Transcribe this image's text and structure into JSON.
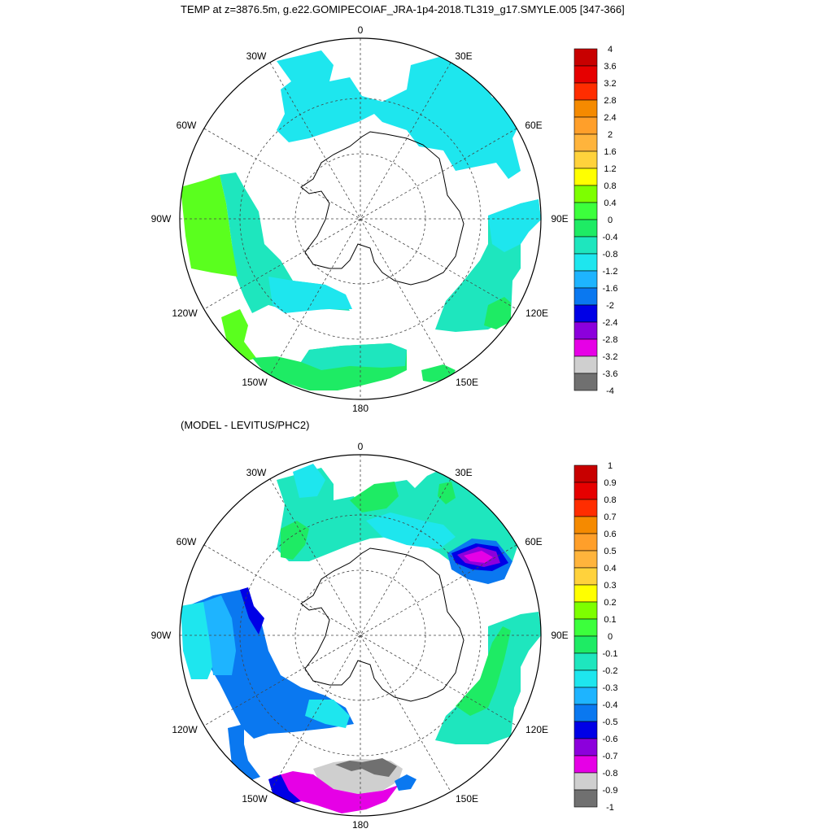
{
  "titles": {
    "main": "TEMP at z=3876.5m, g.e22.GOMIPECOIAF_JRA-1p4-2018.TL319_g17.SMYLE.005 [347-366]",
    "difference": "(MODEL - LEVITUS/PHC2)"
  },
  "panels": [
    {
      "name": "temperature",
      "labels": {
        "lon_0": "0",
        "lon_30e": "30E",
        "lon_60e": "60E",
        "lon_90e": "90E",
        "lon_120e": "120E",
        "lon_150e": "150E",
        "lon_180": "180",
        "lon_150w": "150W",
        "lon_120w": "120W",
        "lon_90w": "90W",
        "lon_60w": "60W",
        "lon_30w": "30W"
      },
      "colorbar": {
        "ticks": [
          "4",
          "3.6",
          "3.2",
          "2.8",
          "2.4",
          "2",
          "1.6",
          "1.2",
          "0.8",
          "0.4",
          "0",
          "-0.4",
          "-0.8",
          "-1.2",
          "-1.6",
          "-2",
          "-2.4",
          "-2.8",
          "-3.2",
          "-3.6",
          "-4"
        ],
        "colors": [
          "#c80000",
          "#e60000",
          "#ff2d00",
          "#f58a00",
          "#ff9f2a",
          "#ffb43c",
          "#ffd23c",
          "#ffff00",
          "#7dff00",
          "#3cff3c",
          "#1eeb64",
          "#1ee6be",
          "#1ee6ee",
          "#1eb4ff",
          "#0a78f0",
          "#0000e6",
          "#8c00dc",
          "#e600e6",
          "#cfcfcf",
          "#707070"
        ]
      }
    },
    {
      "name": "difference",
      "labels": {
        "lon_0": "0",
        "lon_30e": "30E",
        "lon_60e": "60E",
        "lon_90e": "90E",
        "lon_120e": "120E",
        "lon_150e": "150E",
        "lon_180": "180",
        "lon_150w": "150W",
        "lon_120w": "120W",
        "lon_90w": "90W",
        "lon_60w": "60W",
        "lon_30w": "30W"
      },
      "colorbar": {
        "ticks": [
          "1",
          "0.9",
          "0.8",
          "0.7",
          "0.6",
          "0.5",
          "0.4",
          "0.3",
          "0.2",
          "0.1",
          "0",
          "-0.1",
          "-0.2",
          "-0.3",
          "-0.4",
          "-0.5",
          "-0.6",
          "-0.7",
          "-0.8",
          "-0.9",
          "-1"
        ],
        "colors": [
          "#c80000",
          "#e60000",
          "#ff2d00",
          "#f58a00",
          "#ff9f2a",
          "#ffb43c",
          "#ffd23c",
          "#ffff00",
          "#7dff00",
          "#3cff3c",
          "#1eeb64",
          "#1ee6be",
          "#1ee6ee",
          "#1eb4ff",
          "#0a78f0",
          "#0000e6",
          "#8c00dc",
          "#e600e6",
          "#cfcfcf",
          "#707070"
        ]
      }
    }
  ]
}
